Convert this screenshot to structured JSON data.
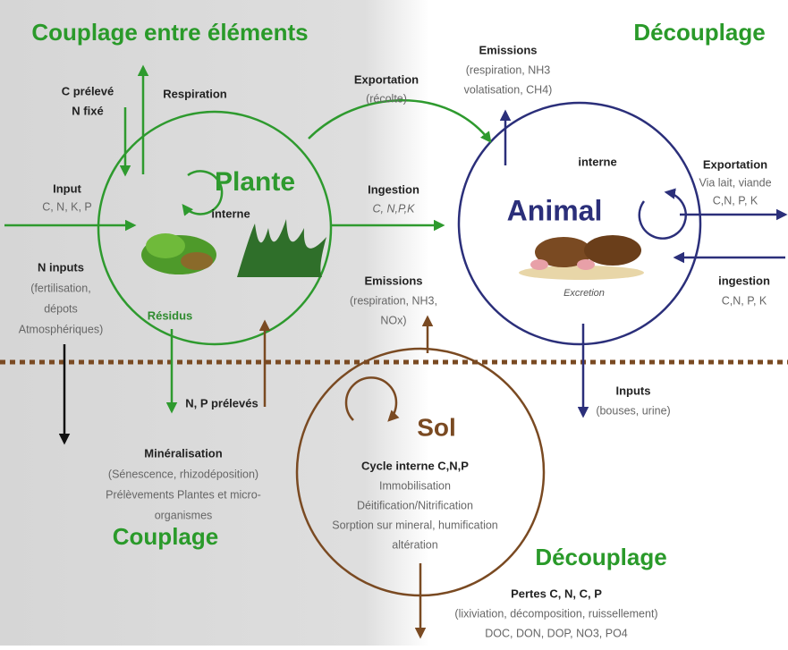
{
  "titles": {
    "left_top": "Couplage entre éléments",
    "right_top": "Découplage",
    "left_bottom": "Couplage",
    "right_bottom": "Découplage"
  },
  "nodes": [
    {
      "label": "Plante"
    },
    {
      "label": "Animal"
    },
    {
      "label": "Sol"
    }
  ],
  "labels": [
    {
      "lines": [
        "C prélevé",
        "N fixé"
      ]
    },
    {
      "lines": [
        "Respiration"
      ]
    },
    {
      "lines": [
        "Input",
        "C, N, K, P"
      ]
    },
    {
      "lines": [
        "interne"
      ]
    },
    {
      "lines": [
        "N inputs",
        "(fertilisation,",
        "dépots",
        "Atmosphériques)"
      ]
    },
    {
      "lines": [
        "Résidus"
      ]
    },
    {
      "lines": [
        "N, P prélevés"
      ]
    },
    {
      "lines": [
        "Minéralisation",
        "(Sénescence, rhizodéposition)",
        "Prélèvements Plantes et  micro-",
        "organismes"
      ]
    },
    {
      "lines": [
        "Exportation",
        "(récolte)"
      ]
    },
    {
      "lines": [
        "Emissions",
        "(respiration, NH3",
        "volatisation, CH4)"
      ]
    },
    {
      "lines": [
        "Ingestion",
        "C, N,P,K"
      ]
    },
    {
      "lines": [
        "Emissions",
        "(respiration, NH3,",
        "NOx)"
      ]
    },
    {
      "lines": [
        "interne"
      ]
    },
    {
      "lines": [
        "Exportation",
        "Via lait, viande",
        "C,N, P, K"
      ]
    },
    {
      "lines": [
        "ingestion",
        "C,N, P, K"
      ]
    },
    {
      "lines": [
        "Excretion"
      ]
    },
    {
      "lines": [
        "Inputs",
        "(bouses, urine)"
      ]
    },
    {
      "lines": [
        "Cycle interne  C,N,P",
        "Immobilisation",
        "Déitification/Nitrification",
        "Sorption sur mineral, humification",
        "altération"
      ]
    },
    {
      "lines": [
        "Pertes C,  N, C, P",
        "(lixiviation, décomposition, ruissellement)",
        "DOC, DON, DOP, NO3, PO4"
      ]
    }
  ]
}
